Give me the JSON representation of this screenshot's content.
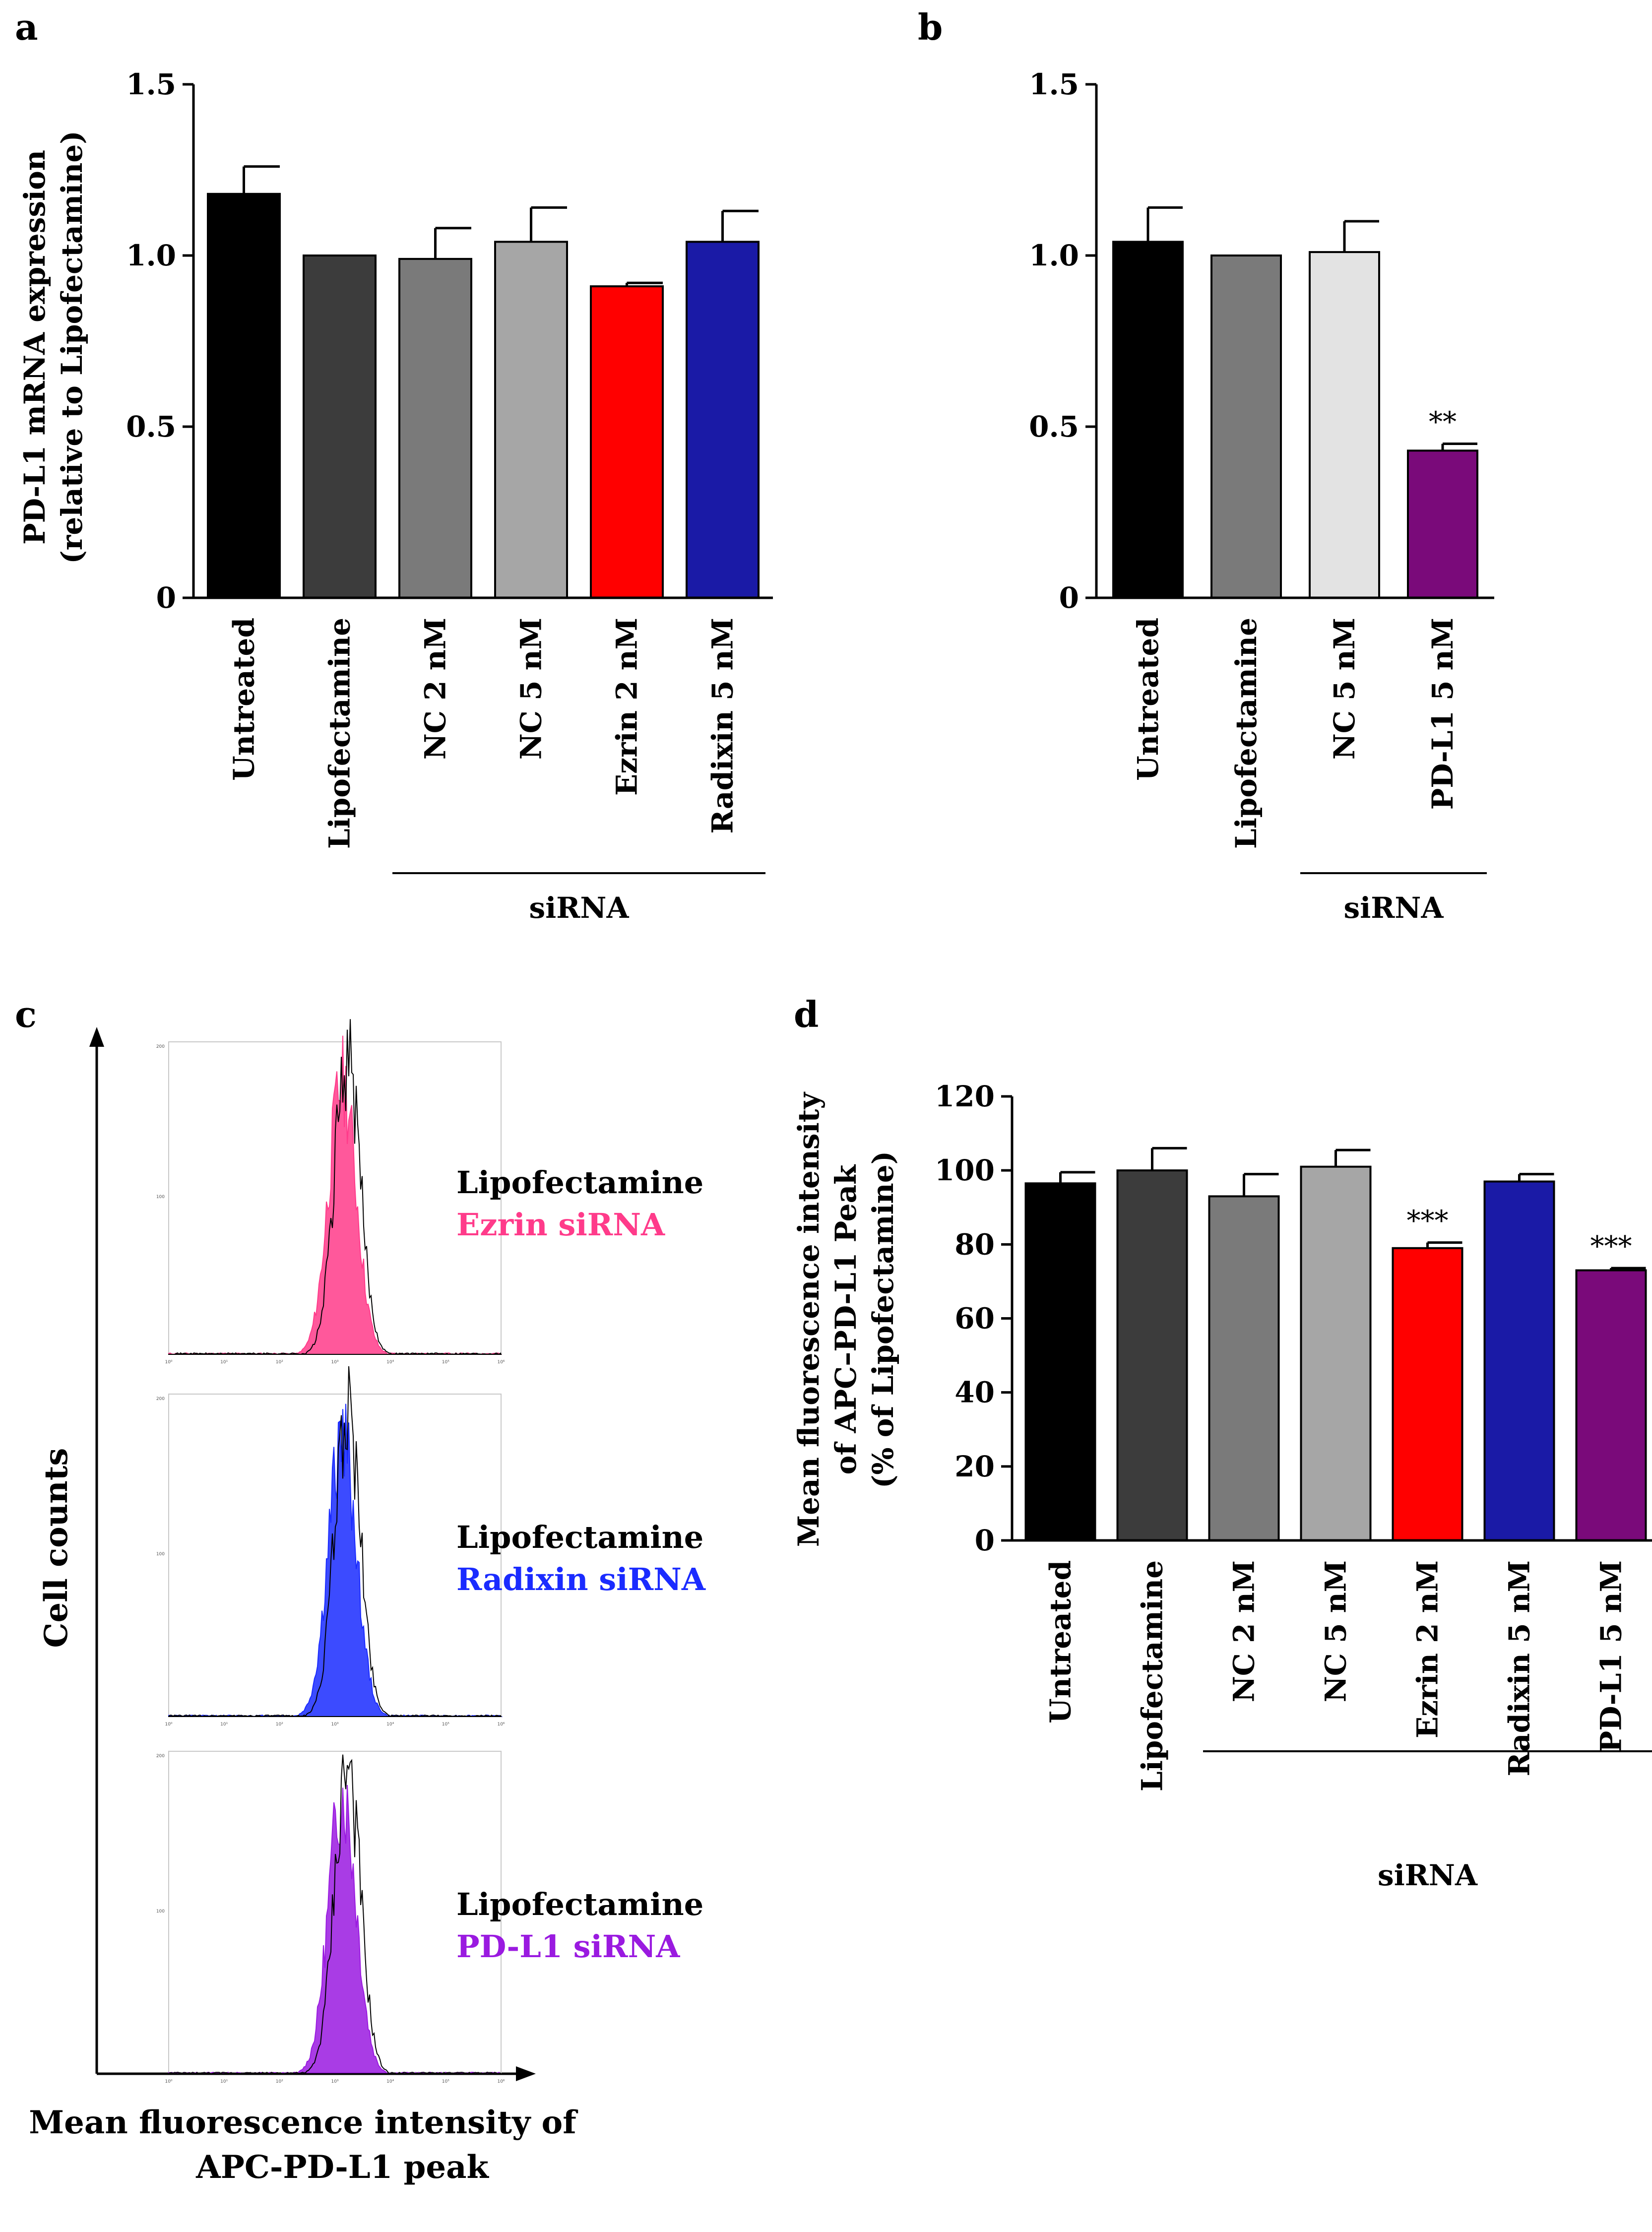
{
  "chart_data": [
    {
      "panel": "a",
      "type": "bar",
      "ylabel_lines": [
        "PD-L1 mRNA expression",
        "(relative to Lipofectamine)"
      ],
      "ylim": [
        0,
        1.5
      ],
      "yticks": [
        "0",
        "0.5",
        "1.0",
        "1.5"
      ],
      "ytick_values": [
        0,
        0.5,
        1.0,
        1.5
      ],
      "categories": [
        "Untreated",
        "Lipofectamine",
        "NC 2 nM",
        "NC 5 nM",
        "Ezrin 2 nM",
        "Radixin 5 nM"
      ],
      "values": [
        1.18,
        1.0,
        0.99,
        1.04,
        0.91,
        1.04
      ],
      "errors": [
        0.08,
        0.0,
        0.09,
        0.1,
        0.01,
        0.09
      ],
      "colors": [
        "#000000",
        "#3c3c3c",
        "#7a7a7a",
        "#a6a6a6",
        "#ff0000",
        "#1a1aa6"
      ],
      "significance": [
        "",
        "",
        "",
        "",
        "",
        ""
      ],
      "group_label": "siRNA",
      "group_span": [
        2,
        5
      ]
    },
    {
      "panel": "b",
      "type": "bar",
      "ylim": [
        0,
        1.5
      ],
      "yticks": [
        "0",
        "0.5",
        "1.0",
        "1.5"
      ],
      "ytick_values": [
        0,
        0.5,
        1.0,
        1.5
      ],
      "categories": [
        "Untreated",
        "Lipofectamine",
        "NC 5 nM",
        "PD-L1 5 nM"
      ],
      "values": [
        1.04,
        1.0,
        1.01,
        0.43
      ],
      "errors": [
        0.1,
        0.0,
        0.09,
        0.02
      ],
      "colors": [
        "#000000",
        "#7a7a7a",
        "#e3e3e3",
        "#7a0a7a"
      ],
      "significance": [
        "",
        "",
        "",
        "**"
      ],
      "group_label": "siRNA",
      "group_span": [
        2,
        3
      ]
    },
    {
      "panel": "d",
      "type": "bar",
      "ylabel_lines": [
        "Mean fluorescence intensity",
        "of APC–PD-L1 Peak",
        "(% of Lipofectamine)"
      ],
      "ylim": [
        0,
        120
      ],
      "yticks": [
        "0",
        "20",
        "40",
        "60",
        "80",
        "100",
        "120"
      ],
      "ytick_values": [
        0,
        20,
        40,
        60,
        80,
        100,
        120
      ],
      "categories": [
        "Untreated",
        "Lipofectamine",
        "NC  2 nM",
        "NC 5 nM",
        "Ezrin 2 nM",
        "Radixin 5 nM",
        "PD-L1 5 nM"
      ],
      "values": [
        96.5,
        100,
        93,
        101,
        79,
        97,
        73
      ],
      "errors": [
        3,
        6,
        6,
        4.5,
        1.5,
        2,
        0.6
      ],
      "colors": [
        "#000000",
        "#3c3c3c",
        "#7a7a7a",
        "#a6a6a6",
        "#ff0000",
        "#1a1aa6",
        "#7a0a7a"
      ],
      "significance": [
        "",
        "",
        "",
        "",
        "***",
        "",
        "***"
      ],
      "group_label": "siRNA",
      "group_span": [
        2,
        6
      ]
    }
  ],
  "panels": {
    "a": "a",
    "b": "b",
    "c": "c",
    "d": "d"
  },
  "flow": {
    "y_axis_label": "Cell counts",
    "x_axis_label_lines": [
      "Mean fluorescence intensity of",
      "APC-PD-L1 peak"
    ],
    "histograms": [
      {
        "control": "Lipofectamine",
        "treated": "Ezrin siRNA",
        "treated_color": "#ff3b8a",
        "y_top_tick": "200",
        "y_mid_tick": "100"
      },
      {
        "control": "Lipofectamine",
        "treated": "Radixin siRNA",
        "treated_color": "#1a2bff",
        "y_top_tick": "200",
        "y_mid_tick": "100"
      },
      {
        "control": "Lipofectamine",
        "treated": "PD-L1 siRNA",
        "treated_color": "#9a1ae0",
        "y_top_tick": "200",
        "y_mid_tick": "100"
      }
    ],
    "x_ticks": [
      "10⁰",
      "10¹",
      "10²",
      "10³",
      "10⁴",
      "10⁵",
      "10⁶"
    ]
  }
}
